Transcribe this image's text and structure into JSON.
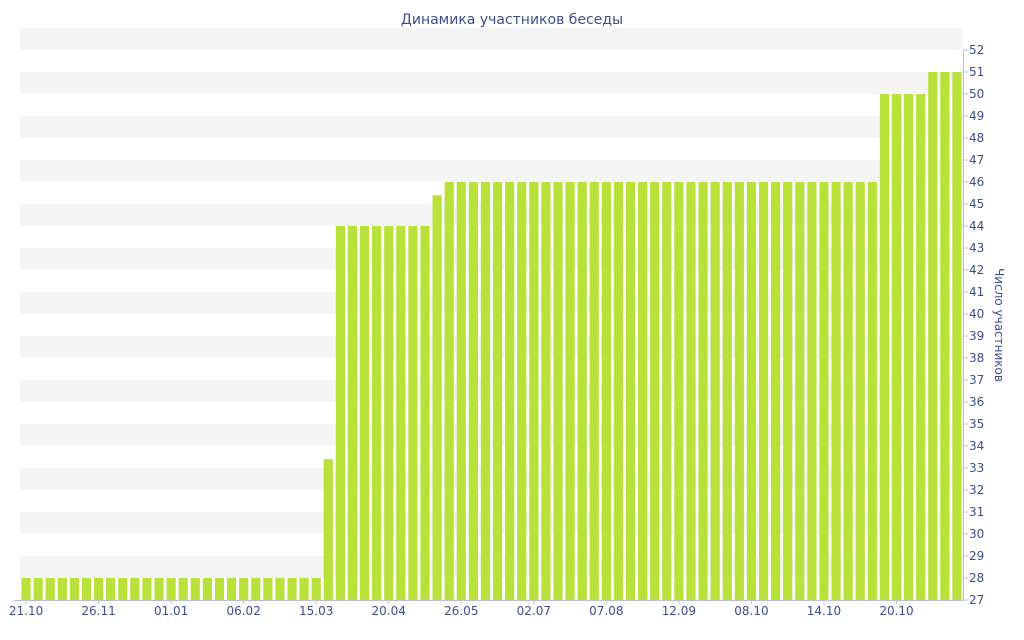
{
  "chart_data": {
    "type": "bar",
    "title": "Динамика участников беседы",
    "xlabel": "",
    "ylabel": "Число участников",
    "ylim": [
      27,
      52
    ],
    "y_ticks": [
      27,
      28,
      29,
      30,
      31,
      32,
      33,
      34,
      35,
      36,
      37,
      38,
      39,
      40,
      41,
      42,
      43,
      44,
      45,
      46,
      47,
      48,
      49,
      50,
      51,
      52
    ],
    "x_tick_labels": [
      {
        "index": 0,
        "label": "21.10"
      },
      {
        "index": 6,
        "label": "26.11"
      },
      {
        "index": 12,
        "label": "01.01"
      },
      {
        "index": 18,
        "label": "06.02"
      },
      {
        "index": 24,
        "label": "15.03"
      },
      {
        "index": 30,
        "label": "20.04"
      },
      {
        "index": 36,
        "label": "26.05"
      },
      {
        "index": 42,
        "label": "02.07"
      },
      {
        "index": 48,
        "label": "07.08"
      },
      {
        "index": 54,
        "label": "12.09"
      },
      {
        "index": 60,
        "label": "08.10"
      },
      {
        "index": 66,
        "label": "14.10"
      },
      {
        "index": 72,
        "label": "20.10"
      }
    ],
    "values": [
      28,
      28,
      28,
      28,
      28,
      28,
      28,
      28,
      28,
      28,
      28,
      28,
      28,
      28,
      28,
      28,
      28,
      28,
      28,
      28,
      28,
      28,
      28,
      28,
      28,
      33.4,
      44,
      44,
      44,
      44,
      44,
      44,
      44,
      44,
      45.4,
      46,
      46,
      46,
      46,
      46,
      46,
      46,
      46,
      46,
      46,
      46,
      46,
      46,
      46,
      46,
      46,
      46,
      46,
      46,
      46,
      46,
      46,
      46,
      46,
      46,
      46,
      46,
      46,
      46,
      46,
      46,
      46,
      46,
      46,
      46,
      46,
      50,
      50,
      50,
      50,
      51,
      51,
      51
    ],
    "grid": "horizontal alternating bands",
    "bar_color": "#b8e23a",
    "band_color": "#f5f5f5",
    "text_color": "#3b4f8f"
  }
}
